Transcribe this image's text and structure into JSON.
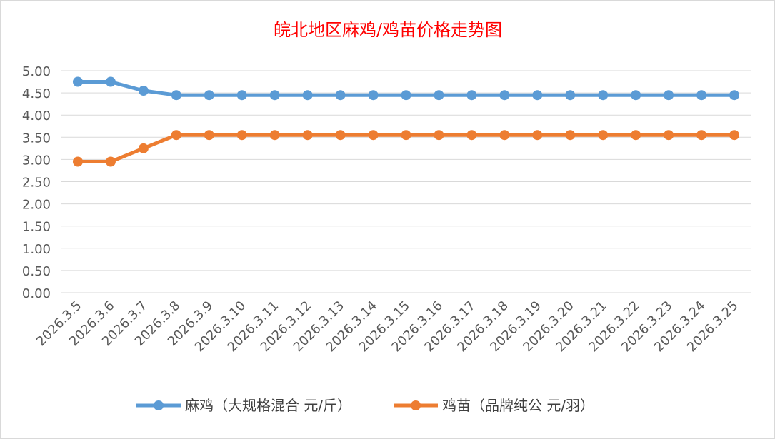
{
  "chart_data": {
    "type": "line",
    "title": "皖北地区麻鸡/鸡苗价格走势图",
    "categories": [
      "2026.3.5",
      "2026.3.6",
      "2026.3.7",
      "2026.3.8",
      "2026.3.9",
      "2026.3.10",
      "2026.3.11",
      "2026.3.12",
      "2026.3.13",
      "2026.3.14",
      "2026.3.15",
      "2026.3.16",
      "2026.3.17",
      "2026.3.18",
      "2026.3.19",
      "2026.3.20",
      "2026.3.21",
      "2026.3.22",
      "2026.3.23",
      "2026.3.24",
      "2026.3.25"
    ],
    "yticks": [
      "0.00",
      "0.50",
      "1.00",
      "1.50",
      "2.00",
      "2.50",
      "3.00",
      "3.50",
      "4.00",
      "4.50",
      "5.00"
    ],
    "ylim": [
      0,
      5
    ],
    "grid": true,
    "legend_position": "bottom",
    "series": [
      {
        "name": "麻鸡（大规格混合 元/斤）",
        "color": "#5b9bd5",
        "values": [
          4.75,
          4.75,
          4.55,
          4.45,
          4.45,
          4.45,
          4.45,
          4.45,
          4.45,
          4.45,
          4.45,
          4.45,
          4.45,
          4.45,
          4.45,
          4.45,
          4.45,
          4.45,
          4.45,
          4.45,
          4.45
        ]
      },
      {
        "name": "鸡苗（品牌纯公 元/羽）",
        "color": "#ed7d31",
        "values": [
          2.95,
          2.95,
          3.25,
          3.55,
          3.55,
          3.55,
          3.55,
          3.55,
          3.55,
          3.55,
          3.55,
          3.55,
          3.55,
          3.55,
          3.55,
          3.55,
          3.55,
          3.55,
          3.55,
          3.55,
          3.55
        ]
      }
    ]
  }
}
